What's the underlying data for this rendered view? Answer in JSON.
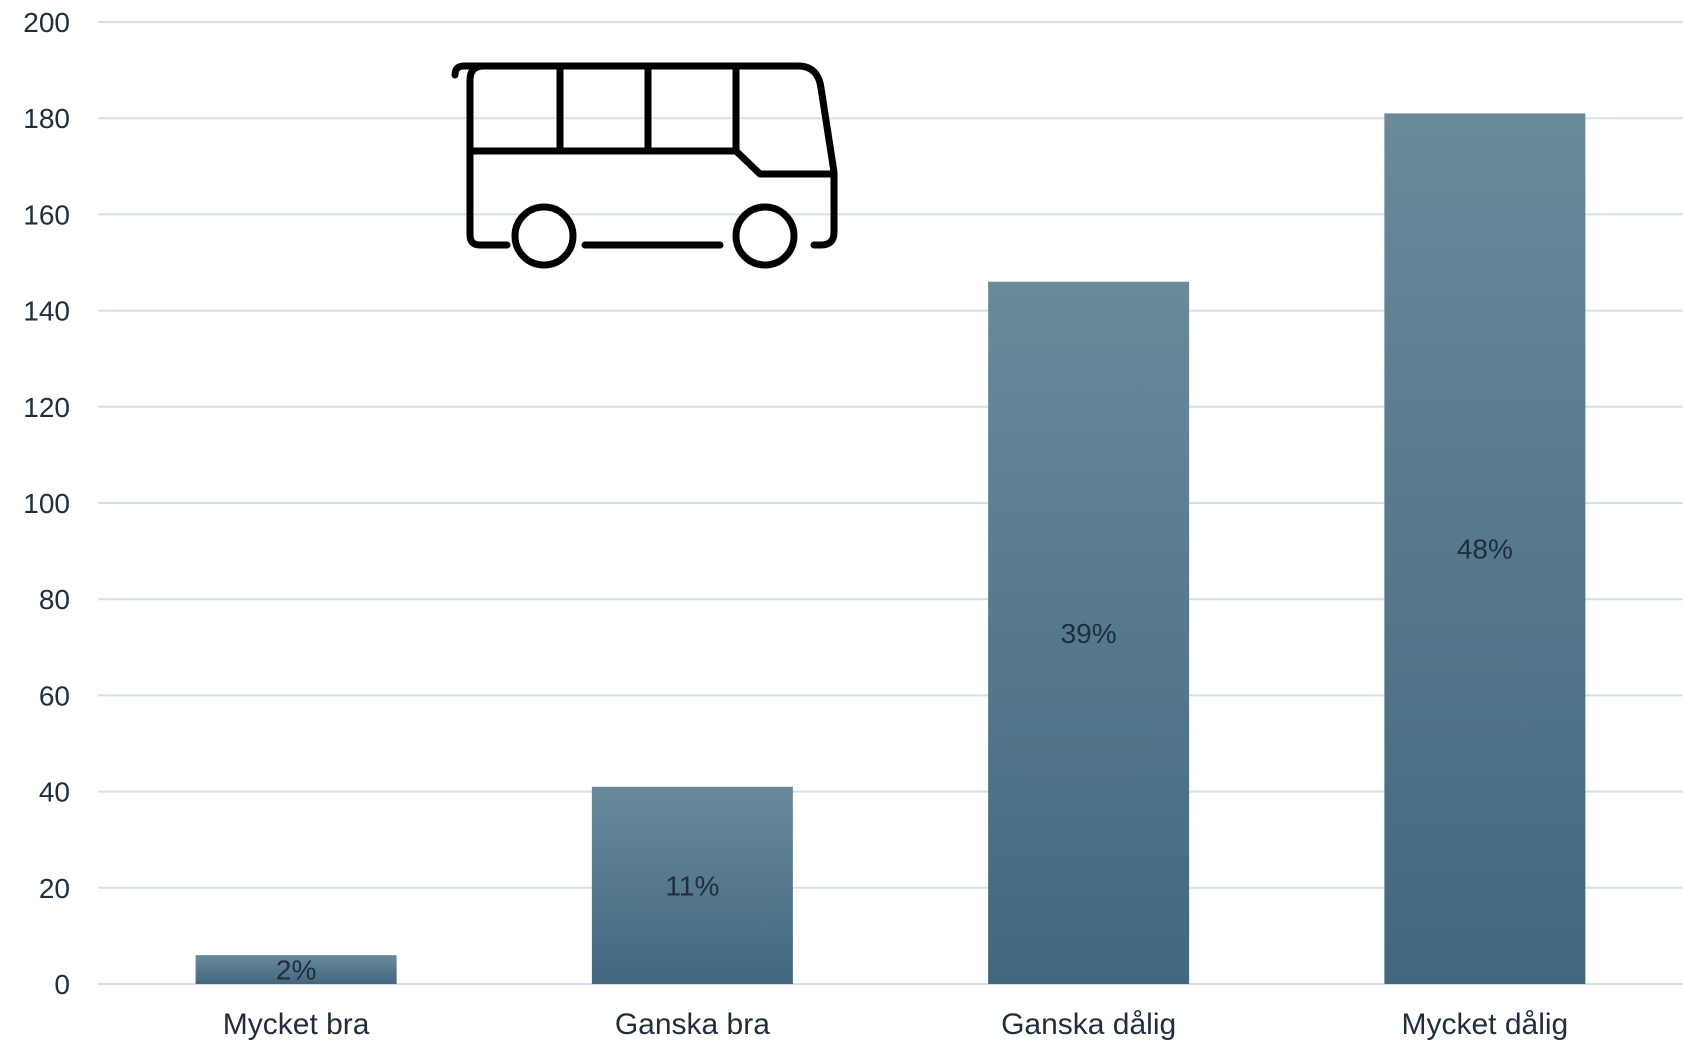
{
  "chart_data": {
    "type": "bar",
    "categories": [
      "Mycket bra",
      "Ganska bra",
      "Ganska dålig",
      "Mycket dålig"
    ],
    "values": [
      6,
      41,
      146,
      181
    ],
    "data_labels": [
      "2%",
      "11%",
      "39%",
      "48%"
    ],
    "title": "",
    "xlabel": "",
    "ylabel": "",
    "ylim": [
      0,
      200
    ],
    "yticks": [
      0,
      20,
      40,
      60,
      80,
      100,
      120,
      140,
      160,
      180,
      200
    ],
    "grid": true,
    "legend": "none",
    "bar_color_top": "#6a8a9b",
    "bar_color_bottom": "#42677f",
    "icon": "bus-icon"
  }
}
